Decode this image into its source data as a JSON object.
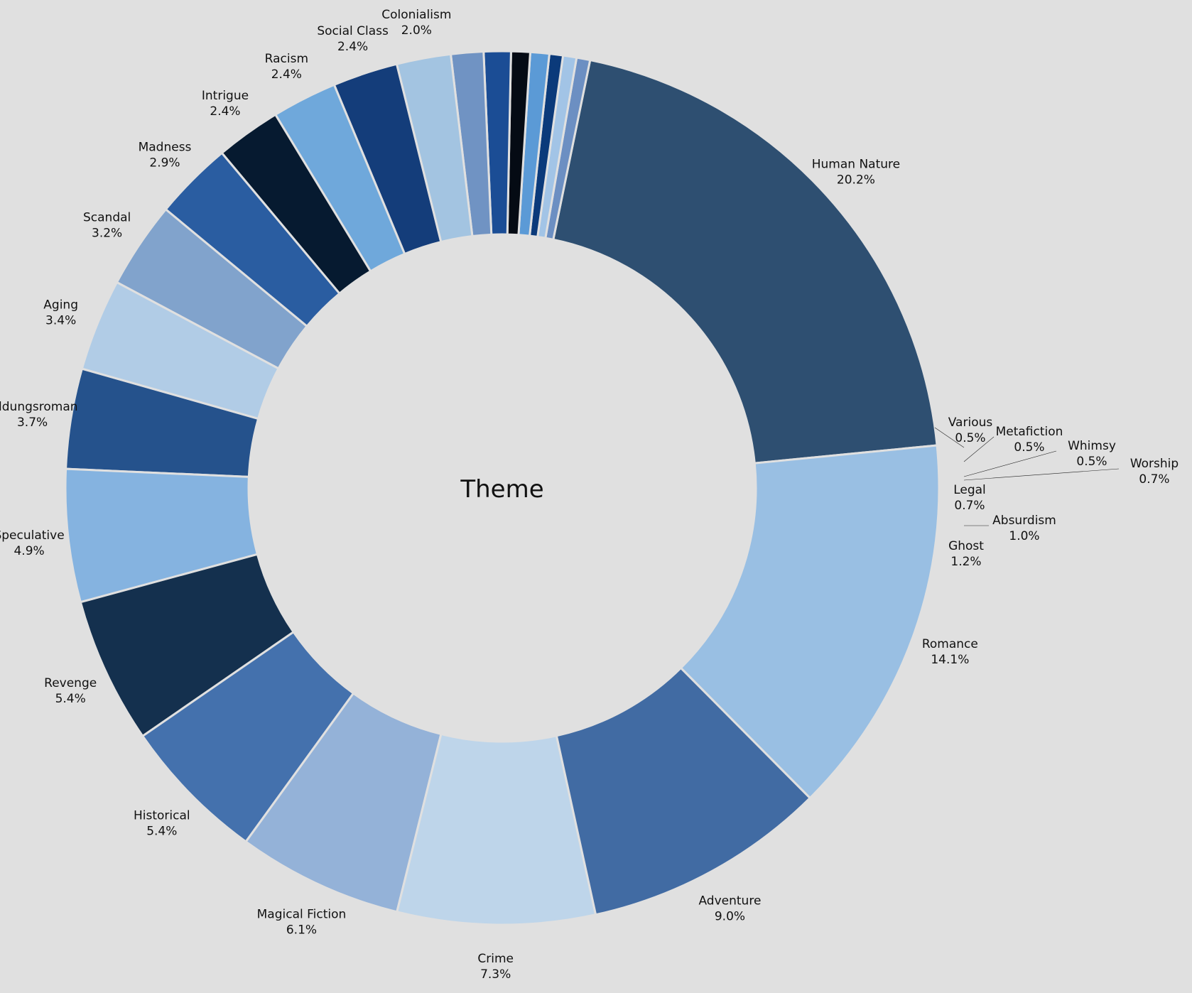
{
  "chart_data": {
    "type": "pie",
    "donut": true,
    "center_label": "Theme",
    "slices": [
      {
        "label": "Human Nature",
        "value": 20.2,
        "pct_text": "20.2%",
        "color": "#2e4f71"
      },
      {
        "label": "Various",
        "value": 0.5,
        "pct_text": "0.5%",
        "color": "#6c8fc2"
      },
      {
        "label": "Metafiction",
        "value": 0.5,
        "pct_text": "0.5%",
        "color": "#a2c4e6"
      },
      {
        "label": "Whimsy",
        "value": 0.5,
        "pct_text": "0.5%",
        "color": "#0b3a7a"
      },
      {
        "label": "Worship",
        "value": 0.7,
        "pct_text": "0.7%",
        "color": "#5b9ad6"
      },
      {
        "label": "Legal",
        "value": 0.7,
        "pct_text": "0.7%",
        "color": "#050b14"
      },
      {
        "label": "Absurdism",
        "value": 1.0,
        "pct_text": "1.0%",
        "color": "#1b4d95"
      },
      {
        "label": "Ghost",
        "value": 1.2,
        "pct_text": "1.2%",
        "color": "#7093c3"
      },
      {
        "label": "Colonialism",
        "value": 2.0,
        "pct_text": "2.0%",
        "color": "#a3c4e1"
      },
      {
        "label": "Social Class",
        "value": 2.4,
        "pct_text": "2.4%",
        "color": "#143d7a"
      },
      {
        "label": "Racism",
        "value": 2.4,
        "pct_text": "2.4%",
        "color": "#6fa8db"
      },
      {
        "label": "Intrigue",
        "value": 2.4,
        "pct_text": "2.4%",
        "color": "#061a30"
      },
      {
        "label": "Madness",
        "value": 2.9,
        "pct_text": "2.9%",
        "color": "#2a5da1"
      },
      {
        "label": "Scandal",
        "value": 3.2,
        "pct_text": "3.2%",
        "color": "#81a3cc"
      },
      {
        "label": "Aging",
        "value": 3.4,
        "pct_text": "3.4%",
        "color": "#b1cce6"
      },
      {
        "label": "Bildungsroman",
        "value": 3.7,
        "pct_text": "3.7%",
        "color": "#25528c"
      },
      {
        "label": "Speculative",
        "value": 4.9,
        "pct_text": "4.9%",
        "color": "#85b3e0"
      },
      {
        "label": "Revenge",
        "value": 5.4,
        "pct_text": "5.4%",
        "color": "#14304e"
      },
      {
        "label": "Historical",
        "value": 5.4,
        "pct_text": "5.4%",
        "color": "#4471ad"
      },
      {
        "label": "Magical Fiction",
        "value": 6.1,
        "pct_text": "6.1%",
        "color": "#94b2d8"
      },
      {
        "label": "Crime",
        "value": 7.3,
        "pct_text": "7.3%",
        "color": "#bed5ea"
      },
      {
        "label": "Adventure",
        "value": 9.0,
        "pct_text": "9.0%",
        "color": "#416ba3"
      },
      {
        "label": "Romance",
        "value": 14.1,
        "pct_text": "14.1%",
        "color": "#99bfe3"
      }
    ],
    "background": "#e0e0e0",
    "edge_color": "#e0e0e0"
  }
}
